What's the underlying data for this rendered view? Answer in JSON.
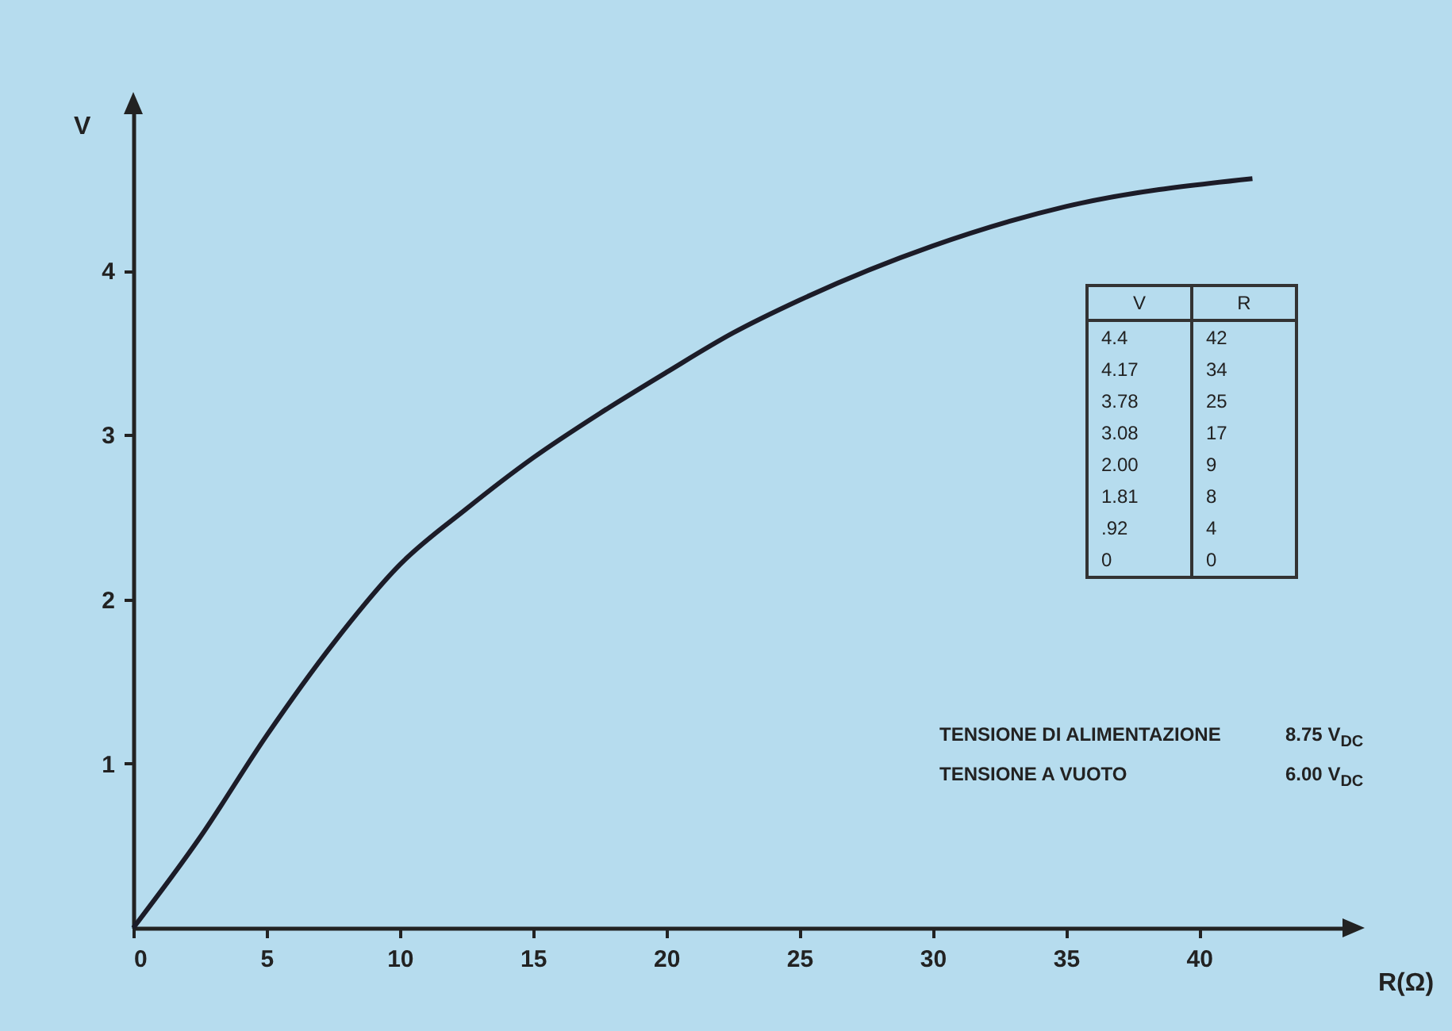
{
  "chart_data": {
    "type": "line",
    "xlabel": "R(Ω)",
    "ylabel": "V",
    "x": [
      0,
      2.5,
      5,
      7.5,
      10,
      12.5,
      15,
      17.5,
      20,
      22.5,
      25,
      30,
      35,
      42
    ],
    "series": [
      {
        "color": "#1c1c28",
        "values": [
          0,
          0.55,
          1.17,
          1.73,
          2.21,
          2.55,
          2.86,
          3.13,
          3.38,
          3.62,
          3.82,
          4.15,
          4.39,
          4.56
        ]
      }
    ],
    "xlim": [
      0,
      45.5
    ],
    "ylim": [
      0,
      5
    ],
    "xticks": [
      0,
      5,
      10,
      15,
      20,
      25,
      30,
      35,
      40
    ],
    "yticks": [
      1,
      2,
      3,
      4
    ],
    "annotations": [
      "V",
      "R",
      "4.4",
      "42",
      "4.17",
      "34",
      "3.78",
      "25",
      "3.08",
      "17",
      "2.00",
      "9",
      "1.81",
      "8",
      ".92",
      "4",
      "0",
      "0",
      "TENSIONE DI ALIMENTAZIONE",
      "8.75 V$_{DC}$",
      "TENSIONE A VUOTO",
      "6.00 V$_{DC}$"
    ]
  }
}
